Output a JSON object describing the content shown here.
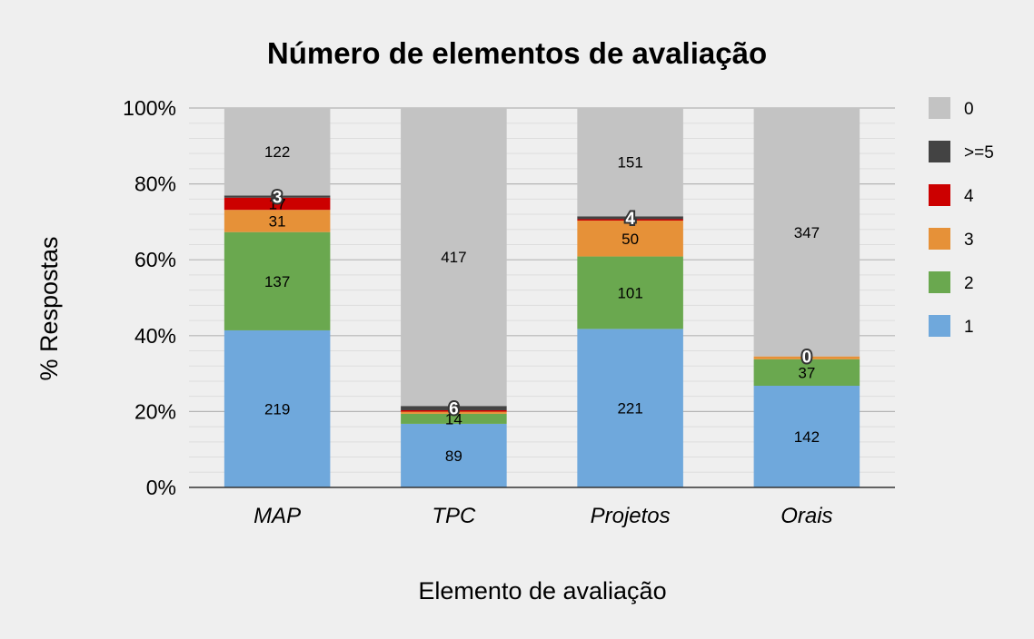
{
  "chart_data": {
    "type": "bar",
    "stacked": true,
    "normalized": true,
    "title": "Número de elementos de avaliação",
    "xlabel": "Elemento de avaliação",
    "ylabel": "% Respostas",
    "ylim": [
      0,
      100
    ],
    "yticks": [
      "0%",
      "20%",
      "40%",
      "60%",
      "80%",
      "100%"
    ],
    "grid": true,
    "legend_position": "right",
    "categories": [
      "MAP",
      "TPC",
      "Projetos",
      "Orais"
    ],
    "series": [
      {
        "name": "1",
        "color": "#6fa8dc",
        "values": [
          219,
          89,
          221,
          142
        ]
      },
      {
        "name": "2",
        "color": "#6aa84f",
        "values": [
          137,
          14,
          101,
          37
        ]
      },
      {
        "name": "3",
        "color": "#e69138",
        "values": [
          31,
          3,
          50,
          4
        ]
      },
      {
        "name": "4",
        "color": "#cc0000",
        "values": [
          17,
          2,
          2,
          0
        ]
      },
      {
        "name": ">=5",
        "color": "#434343",
        "values": [
          3,
          6,
          4,
          0
        ]
      },
      {
        "name": "0",
        "color": "#c3c3c3",
        "values": [
          122,
          417,
          151,
          347
        ]
      }
    ],
    "legend_order": [
      "0",
      ">=5",
      "4",
      "3",
      "2",
      "1"
    ],
    "data_labels": {
      "MAP": {
        "1": "219",
        "2": "137",
        "3": "31",
        "4": "17",
        ">=5": "3",
        "0": "122"
      },
      "TPC": {
        "1": "89",
        "2": "14",
        ">=5": "6",
        "0": "417"
      },
      "Projetos": {
        "1": "221",
        "2": "101",
        "3": "50",
        ">=5": "4",
        "0": "151"
      },
      "Orais": {
        "1": "142",
        "2": "37",
        ">=5": "0",
        "0": "347"
      }
    },
    "outlined_labels": {
      "MAP": ">=5",
      "TPC": ">=5",
      "Projetos": ">=5",
      "Orais": ">=5"
    }
  }
}
